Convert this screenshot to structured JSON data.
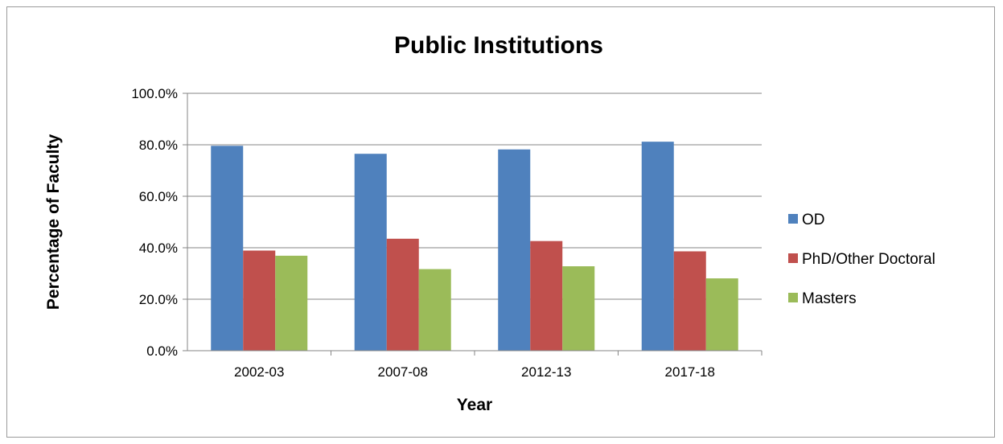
{
  "chart_data": {
    "type": "bar",
    "title": "Public Institutions",
    "xlabel": "Year",
    "ylabel": "Percentage of Faculty",
    "categories": [
      "2002-03",
      "2007-08",
      "2012-13",
      "2017-18"
    ],
    "series": [
      {
        "name": "OD",
        "color": "#4F81BD",
        "values": [
          79.6,
          76.5,
          78.2,
          81.2
        ]
      },
      {
        "name": "PhD/Other Doctoral",
        "color": "#C0504D",
        "values": [
          38.9,
          43.5,
          42.6,
          38.6
        ]
      },
      {
        "name": "Masters",
        "color": "#9BBB59",
        "values": [
          36.9,
          31.7,
          32.8,
          28.1
        ]
      }
    ],
    "ylim": [
      0,
      100
    ],
    "yticks": [
      "0.0%",
      "20.0%",
      "40.0%",
      "60.0%",
      "80.0%",
      "100.0%"
    ],
    "grid": true,
    "legend": "right"
  }
}
